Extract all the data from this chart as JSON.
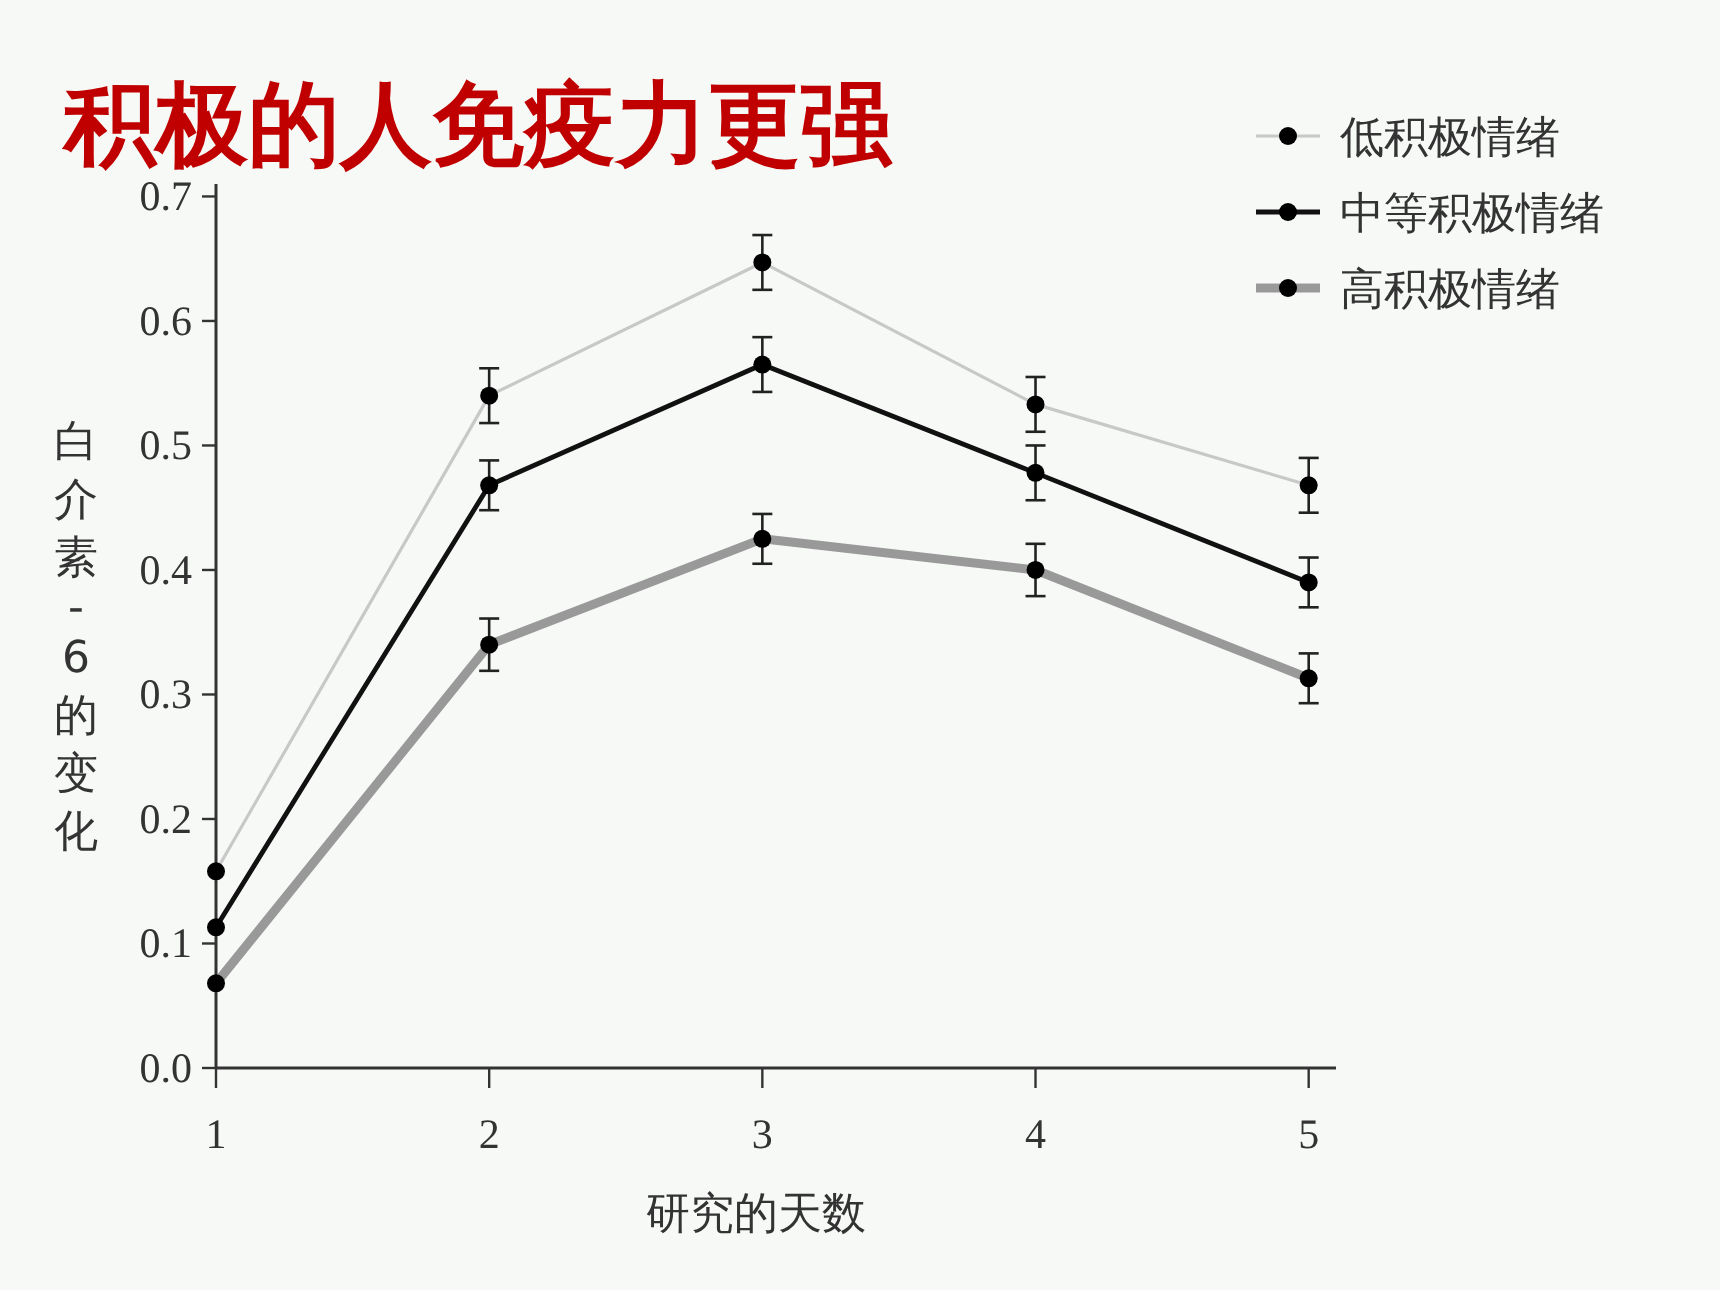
{
  "chart_data": {
    "type": "line",
    "title": "积极的人免疫力更强",
    "xlabel": "研究的天数",
    "ylabel": "白介素-6的变化",
    "x": [
      1,
      2,
      3,
      4,
      5
    ],
    "xlim": [
      1,
      5.1
    ],
    "xticks": [
      1,
      2,
      3,
      4,
      5
    ],
    "ylim": [
      0,
      0.71
    ],
    "yticks": [
      {
        "value": 0,
        "label": "0.0"
      },
      0.1,
      0.2,
      0.3,
      0.4,
      0.5,
      0.6,
      0.7
    ],
    "marker": "circle",
    "grid": false,
    "legend": "top right",
    "series": [
      {
        "name": "低积极情绪",
        "color": "#c8c8c8",
        "values": [
          0.158,
          0.54,
          0.647,
          0.533,
          0.468
        ],
        "errors": [
          null,
          0.022,
          0.022,
          0.022,
          0.022
        ]
      },
      {
        "name": "中等积极情绪",
        "color": "#111111",
        "values": [
          0.113,
          0.468,
          0.565,
          0.478,
          0.39
        ],
        "errors": [
          null,
          0.02,
          0.022,
          0.022,
          0.02
        ]
      },
      {
        "name": "高积极情绪",
        "color": "#999999",
        "values": [
          0.068,
          0.34,
          0.425,
          0.4,
          0.313
        ],
        "errors": [
          null,
          0.021,
          0.02,
          0.021,
          0.02
        ]
      }
    ]
  }
}
